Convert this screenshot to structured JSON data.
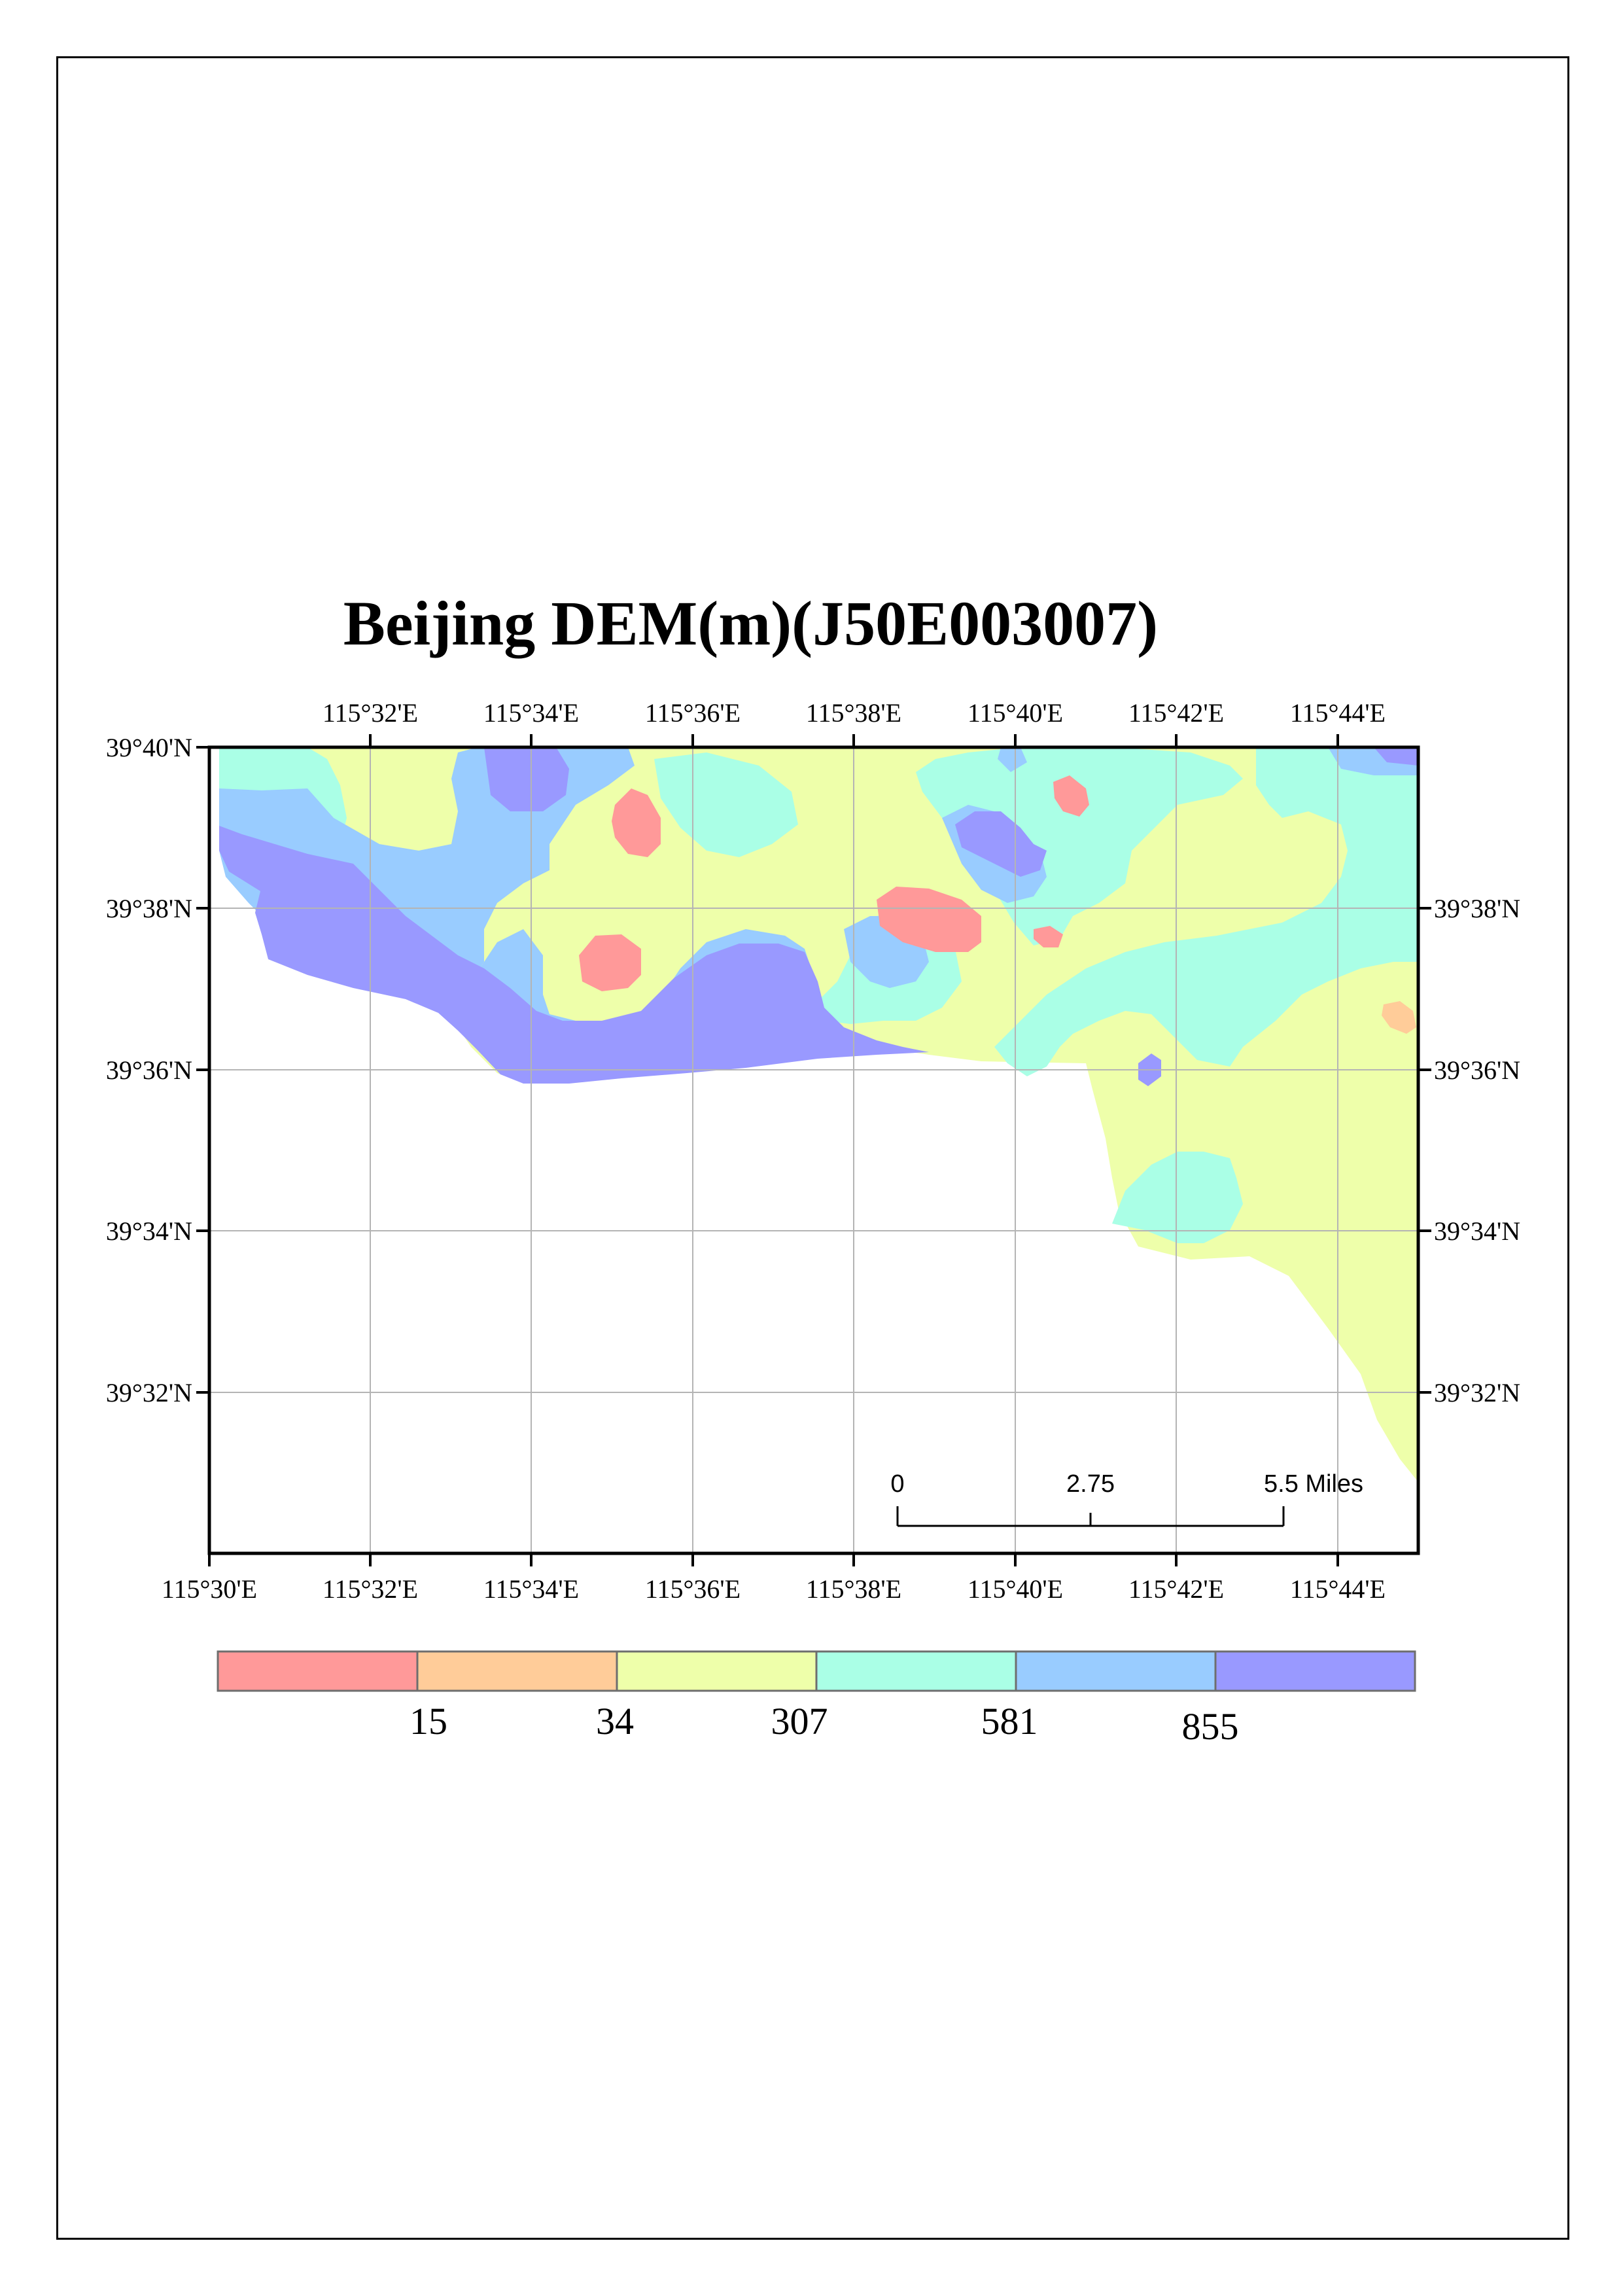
{
  "title": "Beijing DEM(m)(J50E003007)",
  "map": {
    "lon_range": [
      "115°30'E",
      "115°45'E"
    ],
    "lat_range": [
      "39°30'N",
      "39°40'N"
    ],
    "top_lon_labels": [
      "115°32'E",
      "115°34'E",
      "115°36'E",
      "115°38'E",
      "115°40'E",
      "115°42'E",
      "115°44'E"
    ],
    "bottom_lon_labels": [
      "115°30'E",
      "115°32'E",
      "115°34'E",
      "115°36'E",
      "115°38'E",
      "115°40'E",
      "115°42'E",
      "115°44'E"
    ],
    "left_lat_labels": [
      "39°40'N",
      "39°38'N",
      "39°36'N",
      "39°34'N",
      "39°32'N"
    ],
    "right_lat_labels": [
      "39°38'N",
      "39°36'N",
      "39°34'N",
      "39°32'N"
    ]
  },
  "scale_bar": {
    "labels": [
      "0",
      "2.75",
      "5.5 Miles"
    ]
  },
  "legend": {
    "class_colors": [
      "#ff9999",
      "#ffcc99",
      "#eeffaa",
      "#aaffe6",
      "#99ccff",
      "#9999ff"
    ],
    "break_labels": [
      "15",
      "34",
      "307",
      "581",
      "855"
    ]
  }
}
